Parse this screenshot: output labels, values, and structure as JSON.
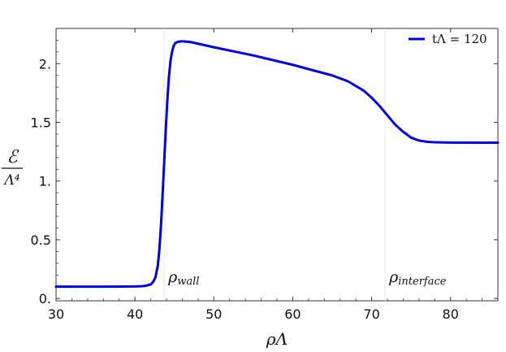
{
  "chart_data": {
    "type": "line",
    "xlabel": "ρΛ",
    "ylabel_numerator": "ℰ",
    "ylabel_denominator": "Λ⁴",
    "xlim": [
      30,
      86
    ],
    "ylim": [
      -0.02,
      2.3
    ],
    "xticks": [
      30,
      40,
      50,
      60,
      70,
      80
    ],
    "xtick_labels": [
      "30",
      "40",
      "50",
      "60",
      "70",
      "80"
    ],
    "yticks": [
      0,
      0.5,
      1,
      1.5,
      2
    ],
    "ytick_labels": [
      "0.",
      "0.5",
      "1.",
      "1.5",
      "2."
    ],
    "grid": false,
    "legend_position": "top-right",
    "vlines": [
      {
        "x": 43.7,
        "label_main": "ρ",
        "label_sub": "wall"
      },
      {
        "x": 71.7,
        "label_main": "ρ",
        "label_sub": "interface"
      }
    ],
    "series": [
      {
        "name": "tΛ = 120",
        "color": "#0000e6",
        "x": [
          30,
          35,
          40,
          41,
          41.5,
          42,
          42.3,
          42.6,
          42.9,
          43.1,
          43.3,
          43.5,
          43.7,
          43.9,
          44.1,
          44.3,
          44.5,
          44.7,
          44.9,
          45.1,
          45.4,
          45.8,
          46.2,
          47,
          48,
          50,
          55,
          60,
          65,
          67,
          69,
          70,
          71,
          72,
          73,
          74,
          75,
          76,
          77,
          78,
          80,
          83,
          86
        ],
        "y": [
          0.1,
          0.1,
          0.102,
          0.105,
          0.11,
          0.12,
          0.14,
          0.18,
          0.28,
          0.42,
          0.62,
          0.88,
          1.15,
          1.43,
          1.68,
          1.88,
          2.02,
          2.1,
          2.15,
          2.175,
          2.185,
          2.19,
          2.19,
          2.185,
          2.17,
          2.14,
          2.07,
          1.99,
          1.9,
          1.85,
          1.77,
          1.71,
          1.64,
          1.56,
          1.48,
          1.42,
          1.37,
          1.345,
          1.335,
          1.33,
          1.328,
          1.327,
          1.327
        ]
      }
    ]
  }
}
